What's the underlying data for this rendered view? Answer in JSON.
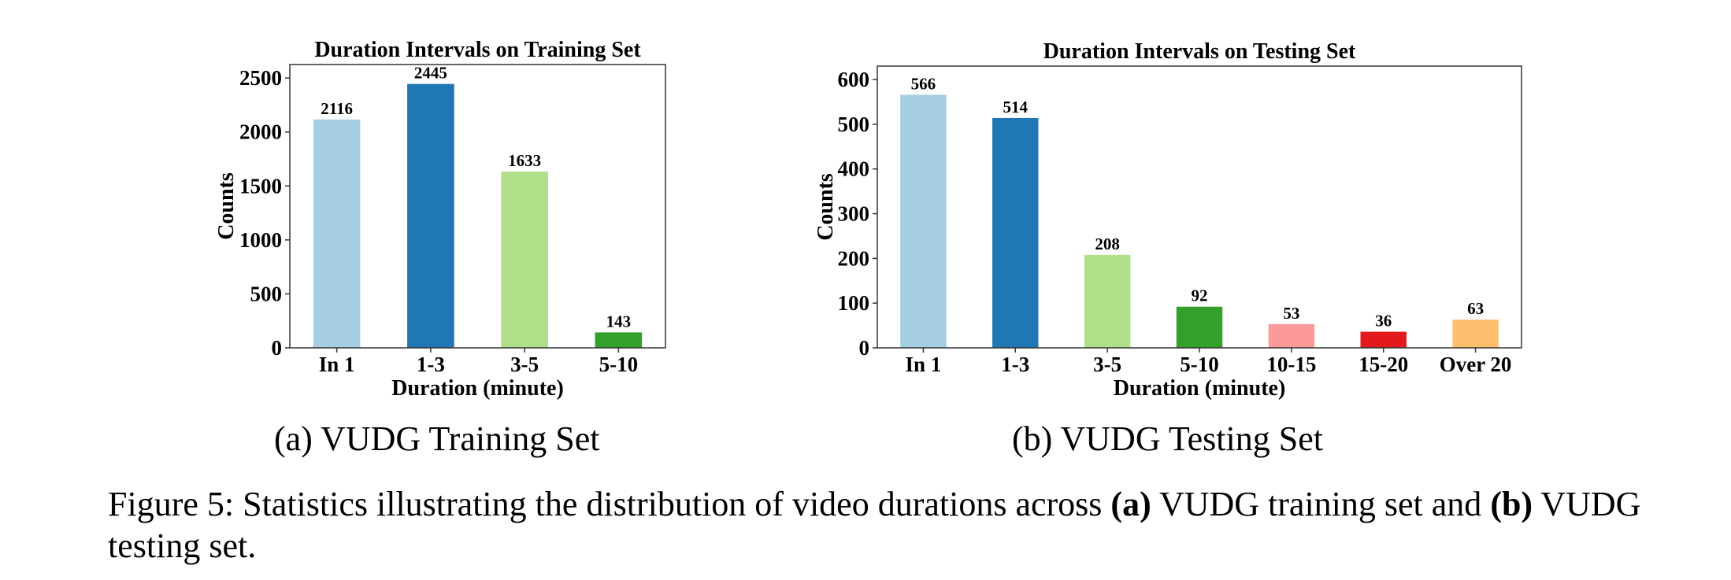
{
  "chart_data": [
    {
      "type": "bar",
      "title": "Duration Intervals on Training Set",
      "xlabel": "Duration (minute)",
      "ylabel": "Counts",
      "categories": [
        "In 1",
        "1-3",
        "3-5",
        "5-10"
      ],
      "values": [
        2116,
        2445,
        1633,
        143
      ],
      "value_labels": [
        "2116",
        "2445",
        "1633",
        "143"
      ],
      "colors": [
        "#a6cee3",
        "#1f78b4",
        "#b2df8a",
        "#33a02c"
      ],
      "ylim": [
        0,
        2625
      ],
      "yticks": [
        0,
        500,
        1000,
        1500,
        2000,
        2500
      ],
      "grid": false,
      "legend": false
    },
    {
      "type": "bar",
      "title": "Duration Intervals on Testing Set",
      "xlabel": "Duration (minute)",
      "ylabel": "Counts",
      "categories": [
        "In 1",
        "1-3",
        "3-5",
        "5-10",
        "10-15",
        "15-20",
        "Over 20"
      ],
      "values": [
        566,
        514,
        208,
        92,
        53,
        36,
        63
      ],
      "value_labels": [
        "566",
        "514",
        "208",
        "92",
        "53",
        "36",
        "63"
      ],
      "colors": [
        "#a6cee3",
        "#1f78b4",
        "#b2df8a",
        "#33a02c",
        "#fb9a99",
        "#e31a1c",
        "#fdbf6f"
      ],
      "ylim": [
        0,
        630
      ],
      "yticks": [
        0,
        100,
        200,
        300,
        400,
        500,
        600
      ],
      "grid": false,
      "legend": false
    }
  ],
  "captions": {
    "sub_a": "(a) VUDG Training Set",
    "sub_b": "(b) VUDG Testing Set",
    "figure_prefix": "Figure 5: Statistics illustrating the distribution of video durations across ",
    "bold_a": "(a)",
    "middle": " VUDG training set and ",
    "bold_b": "(b)",
    "suffix": " VUDG testing set."
  }
}
